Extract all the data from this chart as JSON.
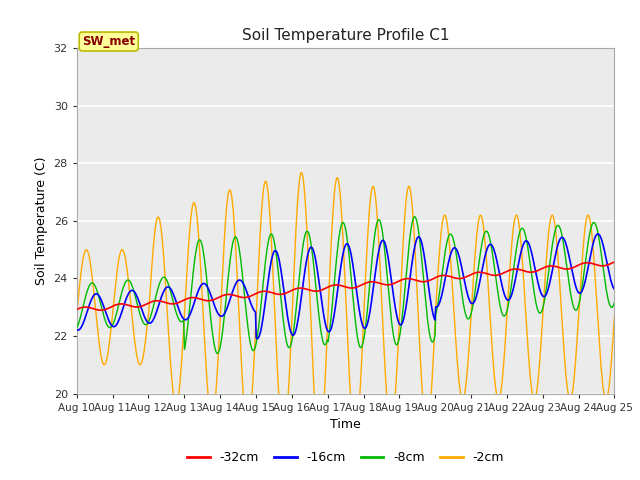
{
  "title": "Soil Temperature Profile C1",
  "xlabel": "Time",
  "ylabel": "Soil Temperature (C)",
  "ylim": [
    20,
    32
  ],
  "yticks": [
    20,
    22,
    24,
    26,
    28,
    30,
    32
  ],
  "x_labels": [
    "Aug 10",
    "Aug 11",
    "Aug 12",
    "Aug 13",
    "Aug 14",
    "Aug 15",
    "Aug 16",
    "Aug 17",
    "Aug 18",
    "Aug 19",
    "Aug 20",
    "Aug 21",
    "Aug 22",
    "Aug 23",
    "Aug 24",
    "Aug 25"
  ],
  "annotation_text": "SW_met",
  "annotation_bg": "#ffff99",
  "annotation_border": "#bbbb00",
  "annotation_text_color": "#880000",
  "colors": {
    "-32cm": "#ff0000",
    "-16cm": "#0000ff",
    "-8cm": "#00bb00",
    "-2cm": "#ffaa00"
  },
  "fig_bg": "#ffffff",
  "plot_bg": "#ebebeb",
  "grid_color": "#ffffff"
}
